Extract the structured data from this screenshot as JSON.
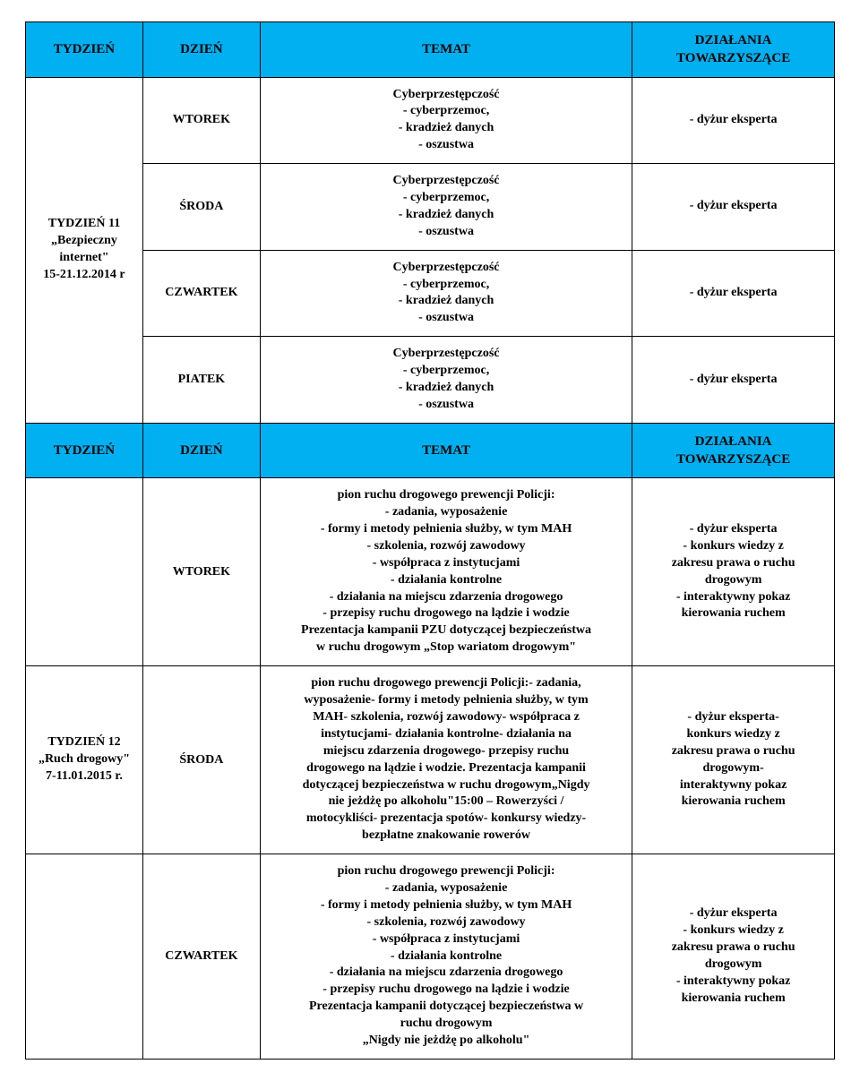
{
  "header": {
    "col1": "TYDZIEŃ",
    "col2": "DZIEŃ",
    "col3": "TEMAT",
    "col4": "DZIAŁANIA\nTOWARZYSZĄCE"
  },
  "week11": {
    "label": "TYDZIEŃ 11\n„Bezpieczny internet\"\n15-21.12.2014 r",
    "rows": [
      {
        "day": "WTOREK",
        "topic": "Cyberprzestępczość\n- cyberprzemoc,\n- kradzież danych\n- oszustwa",
        "actions": "- dyżur eksperta"
      },
      {
        "day": "ŚRODA",
        "topic": "Cyberprzestępczość\n- cyberprzemoc,\n- kradzież danych\n- oszustwa",
        "actions": "- dyżur eksperta"
      },
      {
        "day": "CZWARTEK",
        "topic": "Cyberprzestępczość\n- cyberprzemoc,\n- kradzież danych\n- oszustwa",
        "actions": "- dyżur eksperta"
      },
      {
        "day": "PIATEK",
        "topic": "Cyberprzestępczość\n- cyberprzemoc,\n- kradzież danych\n- oszustwa",
        "actions": "- dyżur eksperta"
      }
    ]
  },
  "midHeader": {
    "col1": "TYDZIEŃ",
    "col2": "DZIEŃ",
    "col3": "TEMAT",
    "col4": "DZIAŁANIA\nTOWARZYSZĄCE"
  },
  "week12": {
    "label": "TYDZIEŃ 12\n„Ruch drogowy\"\n7-11.01.2015 r.",
    "rows": [
      {
        "day": "WTOREK",
        "topic": "pion ruchu drogowego prewencji Policji:\n- zadania, wyposażenie\n- formy i metody pełnienia służby, w tym MAH\n- szkolenia, rozwój zawodowy\n- współpraca z instytucjami\n- działania kontrolne\n- działania na miejscu zdarzenia drogowego\n- przepisy ruchu drogowego na lądzie i wodzie\nPrezentacja kampanii PZU dotyczącej bezpieczeństwa\nw ruchu drogowym „Stop wariatom drogowym\"",
        "actions": "- dyżur eksperta\n- konkurs wiedzy z\nzakresu prawa o ruchu\ndrogowym\n- interaktywny pokaz\nkierowania ruchem"
      },
      {
        "day": "ŚRODA",
        "topic": "pion ruchu drogowego prewencji Policji:- zadania,\nwyposażenie- formy i metody pełnienia służby, w tym\nMAH- szkolenia, rozwój zawodowy- współpraca z\ninstytucjami- działania kontrolne- działania na\nmiejscu zdarzenia drogowego- przepisy ruchu\ndrogowego na lądzie i wodzie. Prezentacja kampanii\ndotyczącej bezpieczeństwa w ruchu drogowym„Nigdy\nnie jeżdżę po alkoholu\"15:00 – Rowerzyści /\nmotocykliści- prezentacja spotów- konkursy wiedzy-\nbezpłatne znakowanie rowerów",
        "actions": "- dyżur eksperta-\nkonkurs wiedzy z\nzakresu prawa o ruchu\ndrogowym-\ninteraktywny pokaz\nkierowania ruchem"
      },
      {
        "day": "CZWARTEK",
        "topic": "pion ruchu drogowego prewencji Policji:\n- zadania, wyposażenie\n- formy i metody pełnienia służby, w tym MAH\n- szkolenia, rozwój zawodowy\n- współpraca z instytucjami\n- działania kontrolne\n- działania na miejscu zdarzenia drogowego\n- przepisy ruchu drogowego na lądzie i wodzie\nPrezentacja kampanii dotyczącej bezpieczeństwa w\nruchu drogowym\n„Nigdy nie jeżdżę po alkoholu\"",
        "actions": "- dyżur eksperta\n- konkurs wiedzy z\nzakresu prawa o ruchu\ndrogowym\n- interaktywny pokaz\nkierowania ruchem"
      }
    ]
  },
  "colors": {
    "header_bg": "#00b0f0",
    "border": "#000000",
    "text": "#000000",
    "page_bg": "#ffffff"
  }
}
